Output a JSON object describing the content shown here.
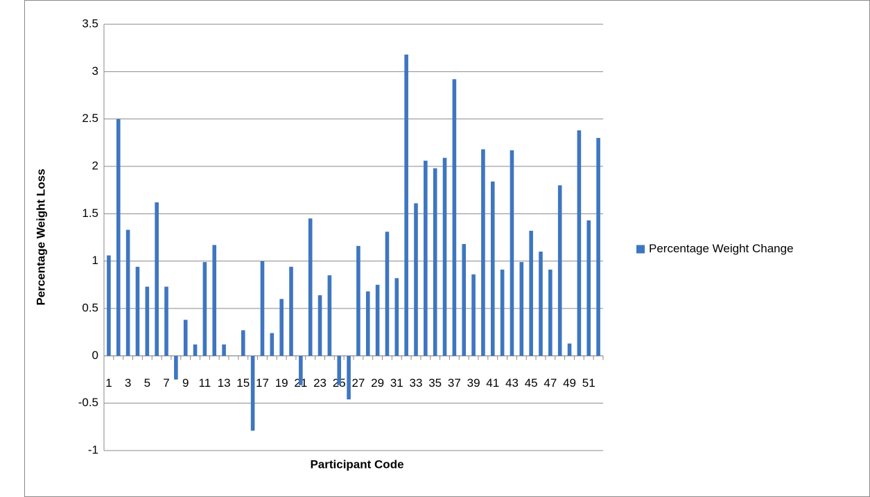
{
  "chart_data": {
    "type": "bar",
    "y_label": "Percentage Weight Loss",
    "x_label": "Participant Code",
    "categories": [
      "1",
      null,
      "3",
      null,
      "5",
      null,
      "7",
      null,
      "9",
      null,
      "11",
      null,
      "13",
      null,
      "15",
      null,
      "17",
      null,
      "19",
      null,
      "21",
      null,
      "23",
      null,
      "25",
      null,
      "27",
      null,
      "29",
      null,
      "31",
      null,
      "33",
      null,
      "35",
      null,
      "37",
      null,
      "39",
      null,
      "41",
      null,
      "43",
      null,
      "45",
      null,
      "47",
      null,
      "49",
      null,
      "51",
      null
    ],
    "series": [
      {
        "name": "Percentage Weight Change",
        "color": "#3e76c0",
        "values": [
          1.06,
          2.5,
          1.33,
          0.94,
          0.73,
          1.62,
          0.73,
          -0.25,
          0.38,
          0.12,
          0.99,
          1.17,
          0.12,
          0,
          0.27,
          -0.79,
          1.0,
          0.24,
          0.6,
          0.94,
          -0.31,
          1.45,
          0.64,
          0.85,
          -0.31,
          -0.46,
          1.16,
          0.68,
          0.75,
          1.31,
          0.82,
          3.18,
          1.61,
          2.06,
          1.98,
          2.09,
          2.92,
          1.18,
          0.86,
          2.18,
          1.84,
          0.91,
          2.17,
          0.99,
          1.32,
          1.1,
          0.91,
          1.8,
          0.13,
          2.38,
          1.43,
          2.3
        ]
      }
    ],
    "ylim": [
      -1,
      3.5
    ],
    "yticks": [
      -1,
      -0.5,
      0,
      0.5,
      1,
      1.5,
      2,
      2.5,
      3,
      3.5
    ],
    "grid": true,
    "legend": "right"
  }
}
